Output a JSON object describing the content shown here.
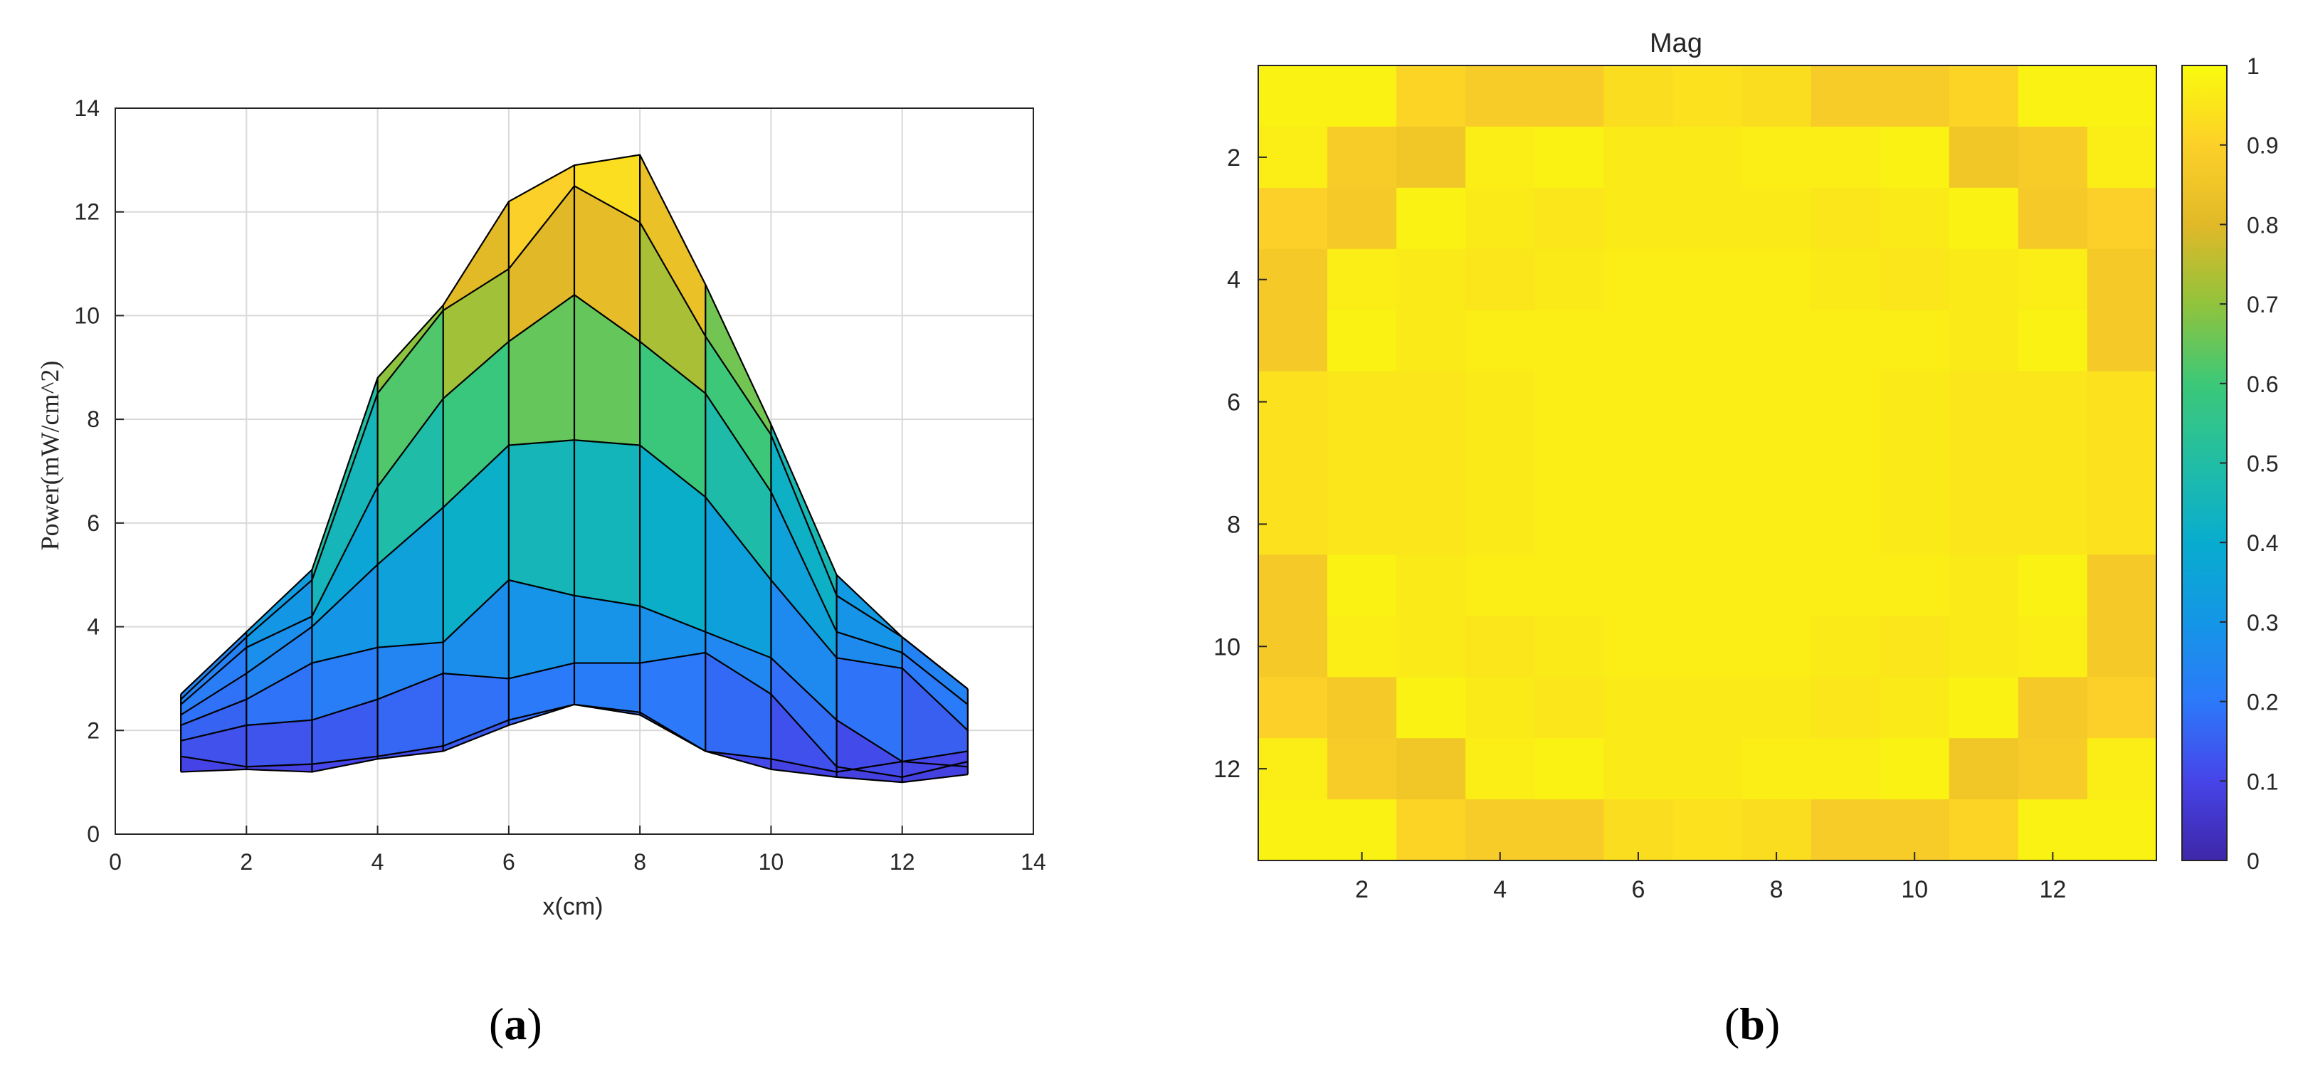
{
  "panels": {
    "a": {
      "caption_open": "(",
      "caption_letter": "a",
      "caption_close": ")"
    },
    "b": {
      "caption_open": "(",
      "caption_letter": "b",
      "caption_close": ")"
    }
  },
  "colors": {
    "axes": "#262626",
    "grid": "#d9d9d9",
    "edges": "#000000"
  },
  "chart_data": [
    {
      "type": "area",
      "panel": "a",
      "title": "",
      "xlabel": "x(cm)",
      "ylabel": "Power(mW/cm^2)",
      "xlim": [
        0,
        14
      ],
      "ylim": [
        0,
        14
      ],
      "xticks": [
        0,
        2,
        4,
        6,
        8,
        10,
        12,
        14
      ],
      "yticks": [
        0,
        2,
        4,
        6,
        8,
        10,
        12,
        14
      ],
      "grid": true,
      "colormap": "parula",
      "x": [
        1,
        2,
        3,
        4,
        5,
        6,
        7,
        8,
        9,
        10,
        11,
        12,
        13
      ],
      "series": [
        {
          "values": [
            1.2,
            1.25,
            1.2,
            1.45,
            1.6,
            2.1,
            2.5,
            2.3,
            1.6,
            1.25,
            1.1,
            1.0,
            1.15
          ]
        },
        {
          "values": [
            1.5,
            1.3,
            1.35,
            1.5,
            1.7,
            2.2,
            2.5,
            2.35,
            1.6,
            1.45,
            1.2,
            1.4,
            1.3
          ]
        },
        {
          "values": [
            1.8,
            2.1,
            2.2,
            2.6,
            3.1,
            3.0,
            3.3,
            3.3,
            3.5,
            2.7,
            1.3,
            1.1,
            1.4
          ]
        },
        {
          "values": [
            2.1,
            2.6,
            3.3,
            3.6,
            3.7,
            4.9,
            4.6,
            4.4,
            3.9,
            3.4,
            2.2,
            1.4,
            1.6
          ]
        },
        {
          "values": [
            2.3,
            3.1,
            4.0,
            5.2,
            6.3,
            7.5,
            7.6,
            7.5,
            6.5,
            4.9,
            3.4,
            3.2,
            2.0
          ]
        },
        {
          "values": [
            2.5,
            3.6,
            4.2,
            6.7,
            8.4,
            9.5,
            10.4,
            9.5,
            8.5,
            6.6,
            3.9,
            3.5,
            2.5
          ]
        },
        {
          "values": [
            2.6,
            3.8,
            4.9,
            8.5,
            10.1,
            10.9,
            12.5,
            11.8,
            9.6,
            7.7,
            4.6,
            3.8,
            2.8
          ]
        },
        {
          "values": [
            2.7,
            3.9,
            5.1,
            8.8,
            10.2,
            12.2,
            12.9,
            13.1,
            10.6,
            7.9,
            5.0,
            3.8,
            2.8
          ]
        }
      ]
    },
    {
      "type": "heatmap",
      "panel": "b",
      "title": "Mag",
      "xlabel": "",
      "ylabel": "",
      "colormap": "parula",
      "xticks": [
        2,
        4,
        6,
        8,
        10,
        12
      ],
      "yticks": [
        2,
        4,
        6,
        8,
        10,
        12
      ],
      "colorbar_ticks": [
        0,
        0.1,
        0.2,
        0.3,
        0.4,
        0.5,
        0.6,
        0.7,
        0.8,
        0.9,
        1
      ],
      "clim": [
        0,
        1
      ],
      "values": [
        [
          0.98,
          0.98,
          0.91,
          0.88,
          0.88,
          0.93,
          0.94,
          0.93,
          0.88,
          0.88,
          0.91,
          0.98,
          0.98
        ],
        [
          0.97,
          0.88,
          0.86,
          0.97,
          0.98,
          0.96,
          0.96,
          0.97,
          0.97,
          0.98,
          0.86,
          0.88,
          0.97
        ],
        [
          0.9,
          0.87,
          0.98,
          0.96,
          0.95,
          0.96,
          0.96,
          0.96,
          0.95,
          0.96,
          0.98,
          0.87,
          0.9
        ],
        [
          0.87,
          0.97,
          0.96,
          0.95,
          0.96,
          0.97,
          0.97,
          0.97,
          0.96,
          0.95,
          0.96,
          0.97,
          0.87
        ],
        [
          0.87,
          0.98,
          0.96,
          0.97,
          0.97,
          0.97,
          0.97,
          0.97,
          0.97,
          0.97,
          0.96,
          0.98,
          0.87
        ],
        [
          0.94,
          0.95,
          0.95,
          0.96,
          0.97,
          0.97,
          0.97,
          0.97,
          0.97,
          0.96,
          0.95,
          0.95,
          0.94
        ],
        [
          0.94,
          0.95,
          0.95,
          0.96,
          0.97,
          0.97,
          0.97,
          0.97,
          0.97,
          0.96,
          0.95,
          0.95,
          0.94
        ],
        [
          0.94,
          0.95,
          0.95,
          0.96,
          0.97,
          0.97,
          0.97,
          0.97,
          0.97,
          0.96,
          0.95,
          0.95,
          0.94
        ],
        [
          0.87,
          0.98,
          0.96,
          0.97,
          0.97,
          0.97,
          0.97,
          0.97,
          0.97,
          0.97,
          0.96,
          0.98,
          0.87
        ],
        [
          0.87,
          0.97,
          0.96,
          0.95,
          0.96,
          0.97,
          0.97,
          0.97,
          0.96,
          0.95,
          0.96,
          0.97,
          0.87
        ],
        [
          0.9,
          0.87,
          0.98,
          0.96,
          0.95,
          0.96,
          0.96,
          0.96,
          0.95,
          0.96,
          0.98,
          0.87,
          0.9
        ],
        [
          0.97,
          0.88,
          0.86,
          0.97,
          0.98,
          0.96,
          0.96,
          0.97,
          0.97,
          0.98,
          0.86,
          0.88,
          0.97
        ],
        [
          0.98,
          0.98,
          0.91,
          0.88,
          0.88,
          0.93,
          0.94,
          0.93,
          0.88,
          0.88,
          0.91,
          0.98,
          0.98
        ]
      ]
    }
  ]
}
